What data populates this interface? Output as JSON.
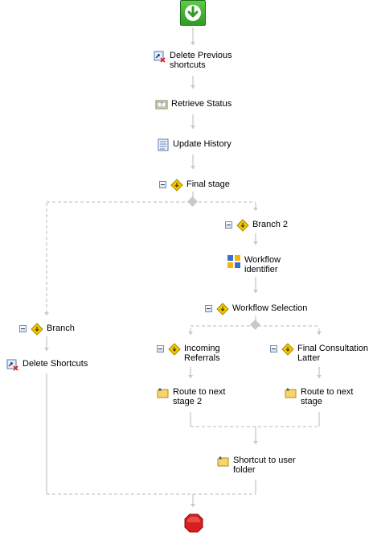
{
  "workflow": {
    "start": {
      "icon": "start-icon"
    },
    "stop": {
      "icon": "stop-icon"
    },
    "activities": {
      "delete_previous_shortcuts": {
        "label_line1": "Delete Previous",
        "label_line2": "shortcuts",
        "icon": "delete-shortcut-icon"
      },
      "retrieve_status": {
        "label": "Retrieve Status",
        "icon": "status-icon"
      },
      "update_history": {
        "label": "Update History",
        "icon": "history-icon"
      },
      "final_stage": {
        "label": "Final stage",
        "icon": "decision-icon"
      },
      "branch_2": {
        "label": "Branch 2",
        "icon": "decision-icon"
      },
      "workflow_identifier": {
        "label_line1": "Workflow",
        "label_line2": "identifier",
        "icon": "workflow-identifier-icon"
      },
      "workflow_selection": {
        "label": "Workflow Selection",
        "icon": "decision-icon"
      },
      "branch": {
        "label": "Branch",
        "icon": "decision-icon"
      },
      "delete_shortcuts": {
        "label": "Delete Shortcuts",
        "icon": "delete-shortcut-icon"
      },
      "incoming_referrals": {
        "label_line1": "Incoming",
        "label_line2": "Referrals",
        "icon": "decision-icon"
      },
      "final_consultation_latter": {
        "label_line1": "Final Consultation",
        "label_line2": "Latter",
        "icon": "decision-icon"
      },
      "route_next_stage_2": {
        "label_line1": "Route to next",
        "label_line2": "stage 2",
        "icon": "folder-route-icon"
      },
      "route_next_stage": {
        "label_line1": "Route to next",
        "label_line2": "stage",
        "icon": "folder-route-icon"
      },
      "shortcut_user_folder": {
        "label_line1": "Shortcut to user",
        "label_line2": "folder",
        "icon": "folder-route-icon"
      }
    }
  },
  "colors": {
    "connector": "#c8c8c8",
    "branch_line": "#b0b0b0",
    "start_green": "#2f9b24",
    "stop_red": "#d81e1e",
    "decision_yellow": "#f2c600"
  }
}
